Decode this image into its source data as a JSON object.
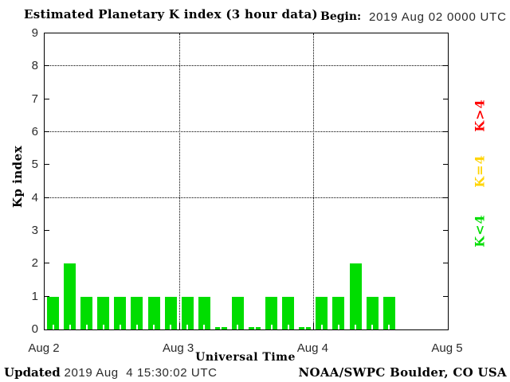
{
  "header": {
    "title": "Estimated Planetary K index (3 hour data)",
    "begin_label": "Begin:",
    "begin_value": "2019 Aug 02 0000 UTC"
  },
  "y_axis": {
    "label": "Kp index",
    "tick_values": [
      0,
      1,
      2,
      3,
      4,
      5,
      6,
      7,
      8,
      9
    ]
  },
  "x_axis": {
    "label": "Universal Time",
    "tick_labels": [
      "Aug 2",
      "Aug 3",
      "Aug 4",
      "Aug 5"
    ]
  },
  "legend": [
    {
      "label": "K>4",
      "color": "#ff0000"
    },
    {
      "label": "K=4",
      "color": "#ffd400"
    },
    {
      "label": "K<4",
      "color": "#00dd00"
    }
  ],
  "footer": {
    "updated_label": "Updated",
    "updated_value": " 2019 Aug  4 15:30:02 UTC",
    "credit": "NOAA/SWPC Boulder, CO USA"
  },
  "chart_data": {
    "type": "bar",
    "title": "Estimated Planetary K index (3 hour data)",
    "xlabel": "Universal Time",
    "ylabel": "Kp index",
    "ylim": [
      0,
      9
    ],
    "y_gridlines": [
      4,
      6,
      8
    ],
    "begin": "2019 Aug 02 0000 UTC",
    "interval_hours": 3,
    "slots_shown": 24,
    "slots_per_day": 8,
    "day_labels": [
      "Aug 2",
      "Aug 3",
      "Aug 4",
      "Aug 5"
    ],
    "values": [
      1,
      2,
      1,
      1,
      1,
      1,
      1,
      1,
      1,
      1,
      0,
      1,
      0,
      1,
      1,
      0,
      1,
      1,
      2,
      1,
      1
    ],
    "bar_color": "#00dd00",
    "grid_on": true,
    "legend_position": "right-rotated"
  }
}
